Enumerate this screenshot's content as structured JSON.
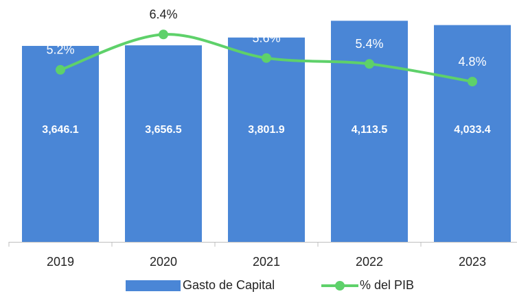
{
  "chart_data": {
    "type": "bar+line",
    "categories": [
      "2019",
      "2020",
      "2021",
      "2022",
      "2023"
    ],
    "series": [
      {
        "name": "Gasto de Capital",
        "type": "bar",
        "color": "#4a86d6",
        "values": [
          3646.1,
          3656.5,
          3801.9,
          4113.5,
          4033.4
        ],
        "value_labels": [
          "3,646.1",
          "3,656.5",
          "3,801.9",
          "4,113.5",
          "4,033.4"
        ]
      },
      {
        "name": "% del PIB",
        "type": "line",
        "axis": "y2",
        "color": "#5ed16a",
        "values": [
          5.2,
          6.4,
          5.6,
          5.4,
          4.8
        ],
        "value_labels": [
          "5.2%",
          "6.4%",
          "5.6%",
          "5.4%",
          "4.8%"
        ]
      }
    ],
    "ylim": [
      0,
      4500
    ],
    "y2lim": [
      -0.64,
      7.57
    ],
    "legend": "bottom"
  }
}
